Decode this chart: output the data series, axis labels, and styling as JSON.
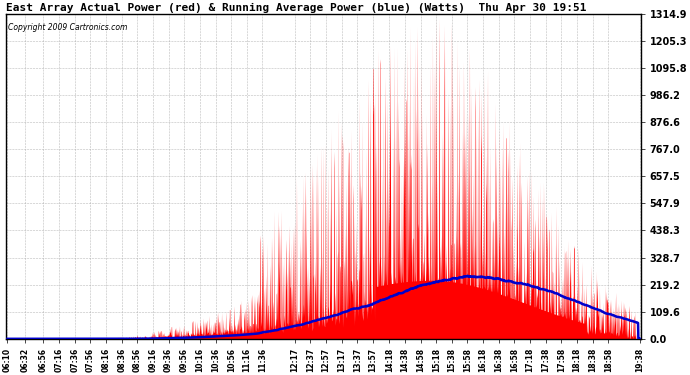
{
  "title": "East Array Actual Power (red) & Running Average Power (blue) (Watts)  Thu Apr 30 19:51",
  "copyright": "Copyright 2009 Cartronics.com",
  "yticks": [
    0.0,
    109.6,
    219.2,
    328.7,
    438.3,
    547.9,
    657.5,
    767.0,
    876.6,
    986.2,
    1095.8,
    1205.3,
    1314.9
  ],
  "ymax": 1314.9,
  "bg_color": "#ffffff",
  "grid_color": "#aaaaaa",
  "actual_color": "#ff0000",
  "avg_color": "#0000cc",
  "xtick_labels": [
    "06:10",
    "06:32",
    "06:56",
    "07:16",
    "07:36",
    "07:56",
    "08:16",
    "08:36",
    "08:56",
    "09:16",
    "09:36",
    "09:56",
    "10:16",
    "10:36",
    "10:56",
    "11:16",
    "11:36",
    "12:17",
    "12:37",
    "12:57",
    "13:17",
    "13:37",
    "13:57",
    "14:18",
    "14:38",
    "14:58",
    "15:18",
    "15:38",
    "15:58",
    "16:18",
    "16:38",
    "16:58",
    "17:18",
    "17:38",
    "17:58",
    "18:18",
    "18:38",
    "18:58",
    "19:38"
  ]
}
